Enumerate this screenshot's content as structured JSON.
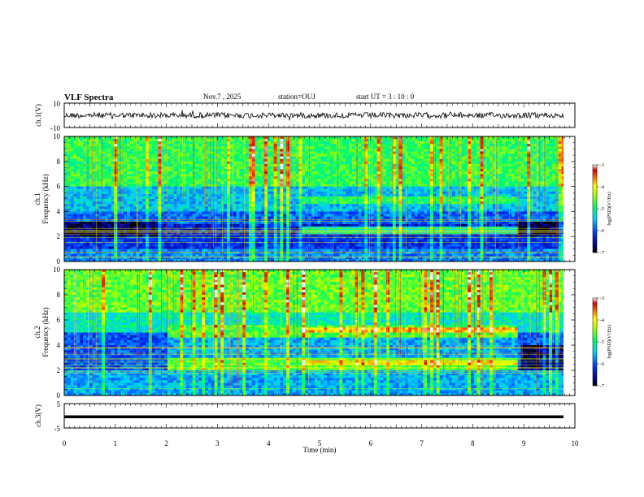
{
  "header": {
    "title": "VLF Spectra",
    "date": "Nov.7 , 2025",
    "station": "station=OUJ",
    "start": "start UT = 3 : 10 : 0"
  },
  "chart_data": [
    {
      "type": "line",
      "ylabel": "ch.1(V)",
      "ylim": [
        -10,
        10
      ],
      "yticks": [
        "10",
        "-10"
      ],
      "description_level": 0
    },
    {
      "type": "heatmap",
      "ylabel_line1": "ch.1",
      "ylabel_line2": "Frequency (kHz)",
      "ylim": [
        0,
        10
      ],
      "yticks": [
        "10",
        "8",
        "6",
        "4",
        "2",
        "0"
      ],
      "colorbar": {
        "ticks": [
          "-3",
          "-4",
          "-5",
          "-6",
          "-7"
        ],
        "range": [
          -7,
          -3
        ],
        "label": "log(PSD)(V²/Hz)"
      }
    },
    {
      "type": "heatmap",
      "ylabel_line1": "ch.2",
      "ylabel_line2": "Frequency (kHz)",
      "ylim": [
        0,
        10
      ],
      "yticks": [
        "10",
        "8",
        "6",
        "4",
        "2",
        "0"
      ],
      "colorbar": {
        "ticks": [
          "-3",
          "-4",
          "-5",
          "-6",
          "-7"
        ],
        "range": [
          -7,
          -3
        ],
        "label": "log(PSD)(V²/Hz)"
      }
    },
    {
      "type": "line",
      "ylabel": "ch.3(V)",
      "ylim": [
        -5,
        5
      ],
      "yticks": [
        "5",
        "-5"
      ],
      "level": -0.5
    }
  ],
  "xaxis": {
    "label": "Time (min)",
    "range": [
      0,
      10
    ],
    "ticks": [
      "0",
      "1",
      "2",
      "3",
      "4",
      "5",
      "6",
      "7",
      "8",
      "9",
      "10"
    ]
  }
}
